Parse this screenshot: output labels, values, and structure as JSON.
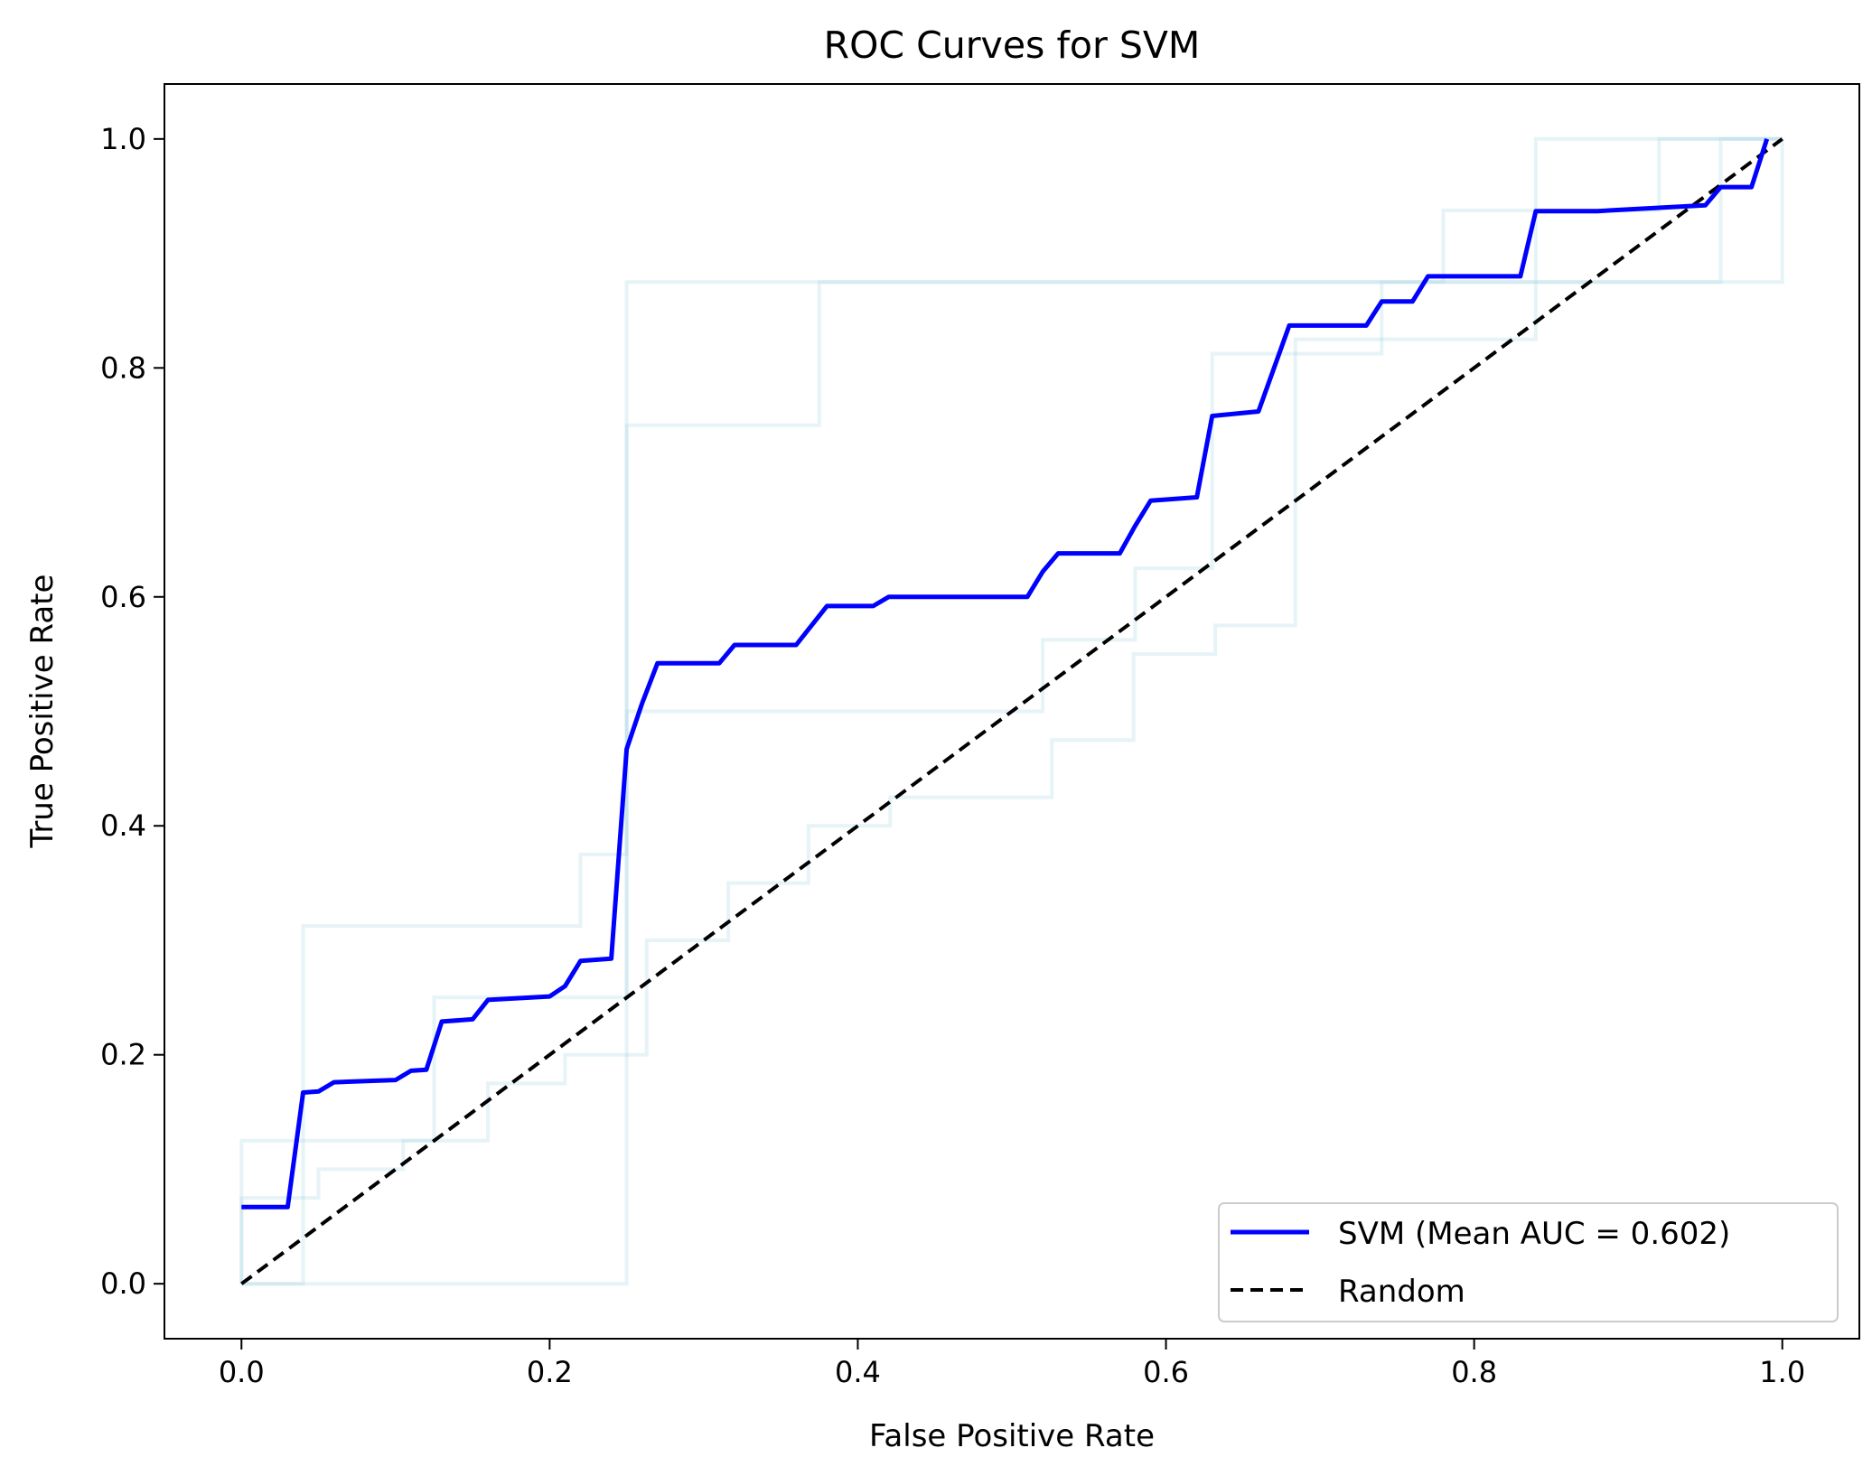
{
  "chart_data": {
    "type": "line",
    "title": "ROC Curves for SVM",
    "xlabel": "False Positive Rate",
    "ylabel": "True Positive Rate",
    "xlim": [
      -0.05,
      1.05
    ],
    "ylim": [
      -0.048,
      1.048
    ],
    "xticks": [
      "0.0",
      "0.2",
      "0.4",
      "0.6",
      "0.8",
      "1.0"
    ],
    "yticks": [
      "0.0",
      "0.2",
      "0.4",
      "0.6",
      "0.8",
      "1.0"
    ],
    "xtick_values": [
      0,
      0.2,
      0.4,
      0.6,
      0.8,
      1.0
    ],
    "ytick_values": [
      0,
      0.2,
      0.4,
      0.6,
      0.8,
      1.0
    ],
    "legend_position": "lower-right",
    "grid": false,
    "series": [
      {
        "name": "SVM (Mean AUC = 0.602)",
        "color": "#0000ff",
        "style": "solid",
        "points": [
          [
            0.0,
            0.067
          ],
          [
            0.03,
            0.067
          ],
          [
            0.04,
            0.167
          ],
          [
            0.05,
            0.168
          ],
          [
            0.06,
            0.176
          ],
          [
            0.1,
            0.178
          ],
          [
            0.11,
            0.186
          ],
          [
            0.12,
            0.187
          ],
          [
            0.13,
            0.229
          ],
          [
            0.15,
            0.231
          ],
          [
            0.16,
            0.248
          ],
          [
            0.2,
            0.251
          ],
          [
            0.21,
            0.26
          ],
          [
            0.22,
            0.282
          ],
          [
            0.24,
            0.284
          ],
          [
            0.25,
            0.467
          ],
          [
            0.26,
            0.507
          ],
          [
            0.27,
            0.542
          ],
          [
            0.31,
            0.542
          ],
          [
            0.32,
            0.558
          ],
          [
            0.36,
            0.558
          ],
          [
            0.38,
            0.592
          ],
          [
            0.41,
            0.592
          ],
          [
            0.42,
            0.6
          ],
          [
            0.51,
            0.6
          ],
          [
            0.52,
            0.622
          ],
          [
            0.53,
            0.638
          ],
          [
            0.57,
            0.638
          ],
          [
            0.58,
            0.662
          ],
          [
            0.59,
            0.684
          ],
          [
            0.62,
            0.687
          ],
          [
            0.63,
            0.758
          ],
          [
            0.66,
            0.762
          ],
          [
            0.68,
            0.837
          ],
          [
            0.73,
            0.837
          ],
          [
            0.74,
            0.858
          ],
          [
            0.76,
            0.858
          ],
          [
            0.77,
            0.88
          ],
          [
            0.83,
            0.88
          ],
          [
            0.84,
            0.937
          ],
          [
            0.88,
            0.937
          ],
          [
            0.95,
            0.942
          ],
          [
            0.96,
            0.958
          ],
          [
            0.98,
            0.958
          ],
          [
            0.99,
            1.0
          ]
        ]
      },
      {
        "name": "Random",
        "color": "#000000",
        "style": "dashed",
        "points": [
          [
            0,
            0
          ],
          [
            1,
            1
          ]
        ]
      }
    ],
    "fold_curves": [
      {
        "color": "#add8e6",
        "points": [
          [
            0,
            0
          ],
          [
            0,
            0.125
          ],
          [
            0.125,
            0.125
          ],
          [
            0.125,
            0.25
          ],
          [
            0.25,
            0.25
          ],
          [
            0.25,
            0.875
          ],
          [
            0.84,
            0.875
          ],
          [
            0.84,
            1.0
          ],
          [
            1.0,
            1.0
          ]
        ]
      },
      {
        "color": "#add8e6",
        "points": [
          [
            0,
            0
          ],
          [
            0.04,
            0
          ],
          [
            0.04,
            0.3125
          ],
          [
            0.22,
            0.3125
          ],
          [
            0.22,
            0.375
          ],
          [
            0.25,
            0.375
          ],
          [
            0.25,
            0.75
          ],
          [
            0.375,
            0.75
          ],
          [
            0.375,
            0.875
          ],
          [
            1.0,
            0.875
          ],
          [
            1.0,
            1.0
          ]
        ]
      },
      {
        "color": "#add8e6",
        "points": [
          [
            0,
            0
          ],
          [
            0,
            0.075
          ],
          [
            0.05,
            0.075
          ],
          [
            0.05,
            0.1
          ],
          [
            0.105,
            0.1
          ],
          [
            0.105,
            0.125
          ],
          [
            0.16,
            0.125
          ],
          [
            0.16,
            0.175
          ],
          [
            0.21,
            0.175
          ],
          [
            0.21,
            0.2
          ],
          [
            0.263,
            0.2
          ],
          [
            0.263,
            0.3
          ],
          [
            0.316,
            0.3
          ],
          [
            0.316,
            0.35
          ],
          [
            0.368,
            0.35
          ],
          [
            0.368,
            0.4
          ],
          [
            0.421,
            0.4
          ],
          [
            0.421,
            0.425
          ],
          [
            0.526,
            0.425
          ],
          [
            0.526,
            0.475
          ],
          [
            0.579,
            0.475
          ],
          [
            0.579,
            0.55
          ],
          [
            0.632,
            0.55
          ],
          [
            0.632,
            0.575
          ],
          [
            0.684,
            0.575
          ],
          [
            0.684,
            0.825
          ],
          [
            0.84,
            0.825
          ],
          [
            0.84,
            0.875
          ],
          [
            0.96,
            0.875
          ],
          [
            0.96,
            1.0
          ],
          [
            1.0,
            1.0
          ]
        ]
      },
      {
        "color": "#add8e6",
        "points": [
          [
            0,
            0
          ],
          [
            0.25,
            0
          ],
          [
            0.25,
            0.5
          ],
          [
            0.52,
            0.5
          ],
          [
            0.52,
            0.5625
          ],
          [
            0.58,
            0.5625
          ],
          [
            0.58,
            0.625
          ],
          [
            0.63,
            0.625
          ],
          [
            0.63,
            0.8125
          ],
          [
            0.74,
            0.8125
          ],
          [
            0.74,
            0.875
          ],
          [
            0.78,
            0.875
          ],
          [
            0.78,
            0.9375
          ],
          [
            0.92,
            0.9375
          ],
          [
            0.92,
            1.0
          ],
          [
            1.0,
            1.0
          ]
        ]
      }
    ]
  }
}
